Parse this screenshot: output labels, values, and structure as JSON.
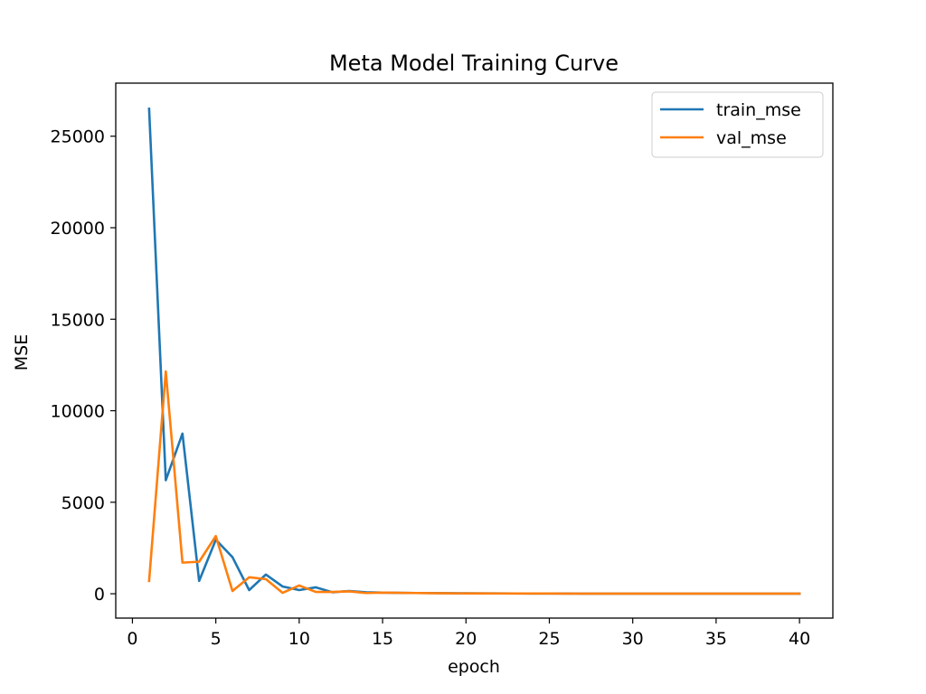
{
  "chart_data": {
    "type": "line",
    "title": "Meta Model Training Curve",
    "xlabel": "epoch",
    "ylabel": "MSE",
    "xlim": [
      -1,
      42
    ],
    "ylim": [
      -1330,
      27900
    ],
    "xticks": [
      0,
      5,
      10,
      15,
      20,
      25,
      30,
      35,
      40
    ],
    "yticks": [
      0,
      5000,
      10000,
      15000,
      20000,
      25000
    ],
    "grid": false,
    "legend_position": "upper right",
    "x": [
      1,
      2,
      3,
      4,
      5,
      6,
      7,
      8,
      9,
      10,
      11,
      12,
      13,
      14,
      15,
      16,
      17,
      18,
      19,
      20,
      21,
      22,
      23,
      24,
      25,
      26,
      27,
      28,
      29,
      30,
      31,
      32,
      33,
      34,
      35,
      36,
      37,
      38,
      39,
      40
    ],
    "series": [
      {
        "name": "train_mse",
        "color": "#1f77b4",
        "values": [
          26500,
          6200,
          8750,
          700,
          2950,
          2000,
          200,
          1050,
          400,
          200,
          350,
          80,
          150,
          80,
          60,
          50,
          40,
          35,
          30,
          25,
          20,
          18,
          15,
          12,
          10,
          10,
          8,
          8,
          7,
          7,
          6,
          6,
          5,
          5,
          5,
          5,
          4,
          4,
          4,
          4
        ]
      },
      {
        "name": "val_mse",
        "color": "#ff7f0e",
        "values": [
          700,
          12150,
          1700,
          1750,
          3150,
          150,
          900,
          800,
          50,
          450,
          100,
          100,
          130,
          40,
          60,
          50,
          40,
          30,
          25,
          20,
          18,
          15,
          12,
          10,
          10,
          8,
          8,
          7,
          7,
          6,
          6,
          5,
          5,
          5,
          5,
          4,
          4,
          4,
          4,
          4
        ]
      }
    ]
  }
}
